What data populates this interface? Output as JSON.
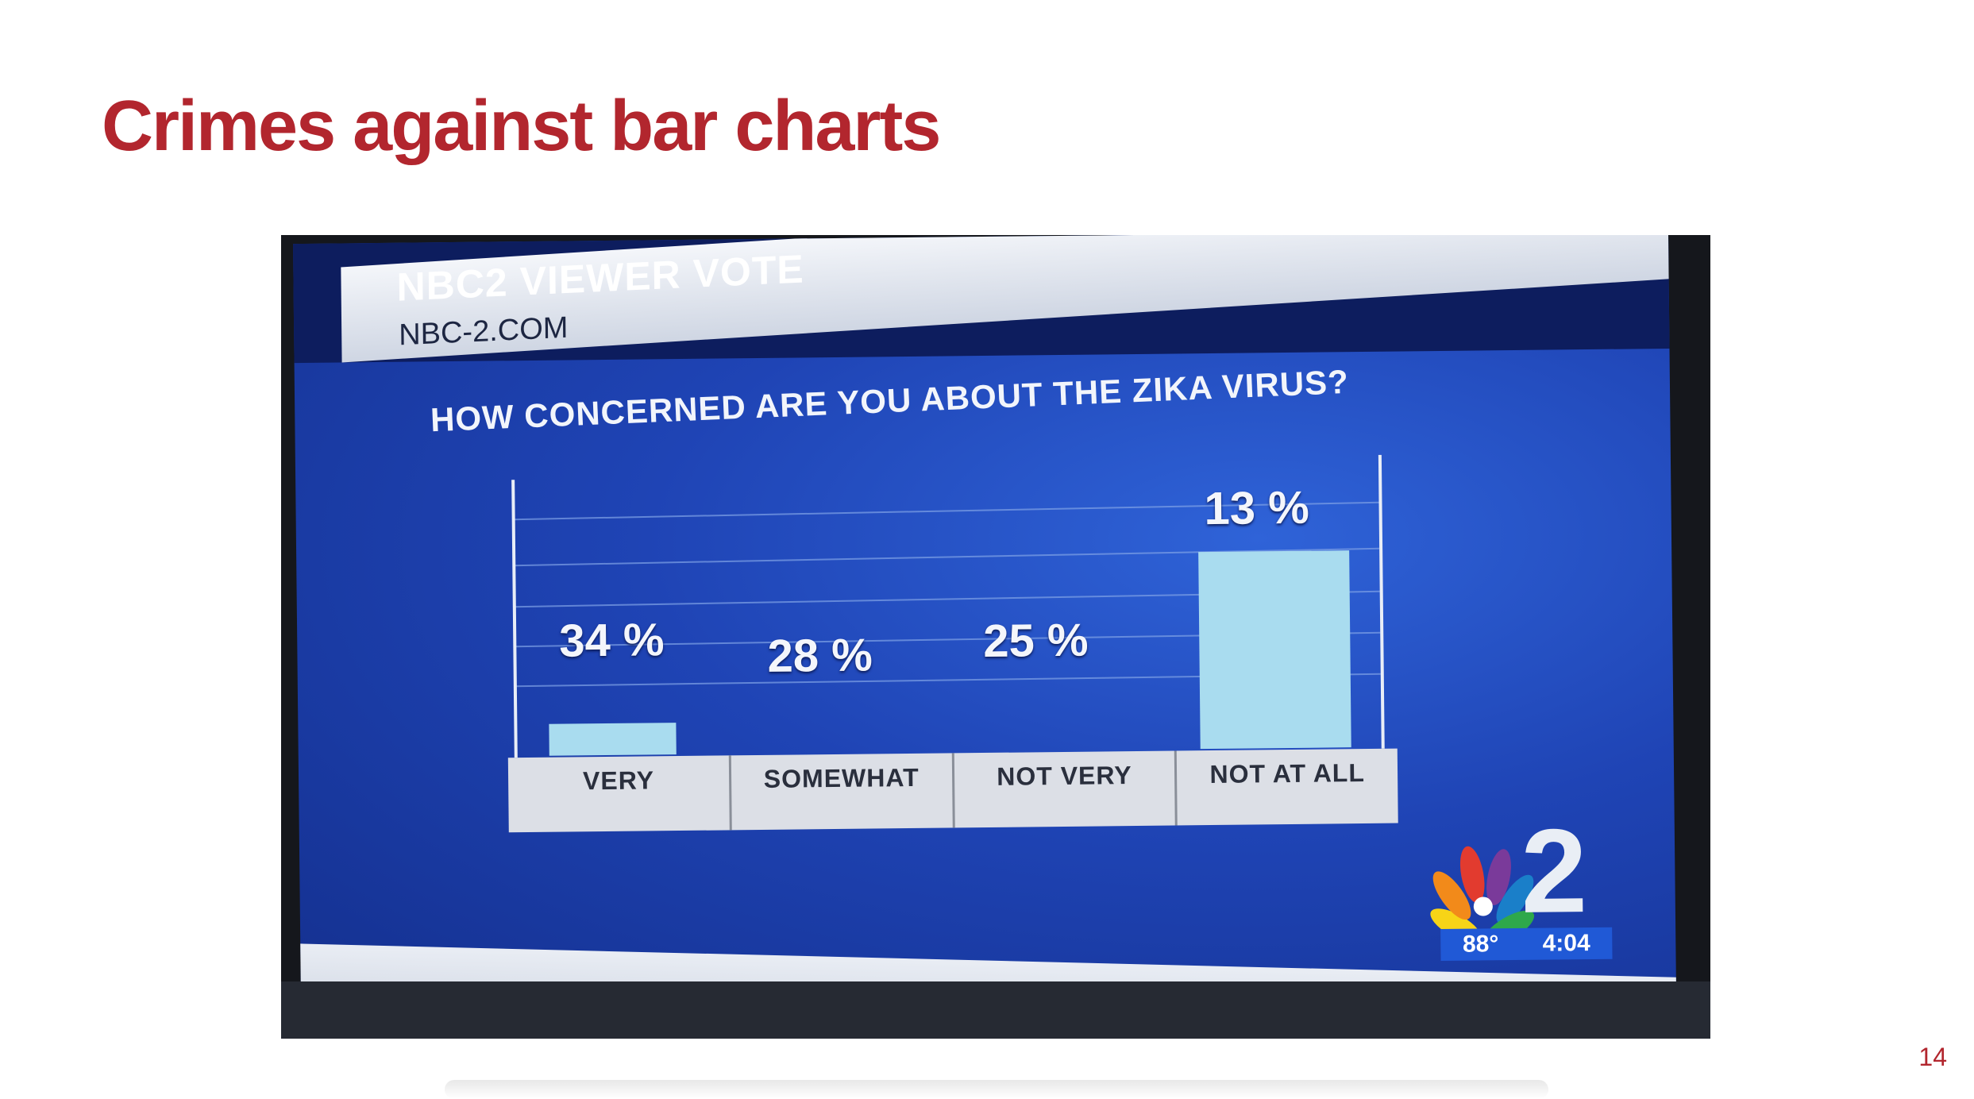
{
  "slide": {
    "title": "Crimes against bar charts",
    "page_number": "14"
  },
  "photo": {
    "header_title": "NBC2 VIEWER VOTE",
    "header_subtitle": "NBC-2.COM",
    "question": "HOW CONCERNED ARE YOU ABOUT THE ZIKA VIRUS?",
    "temperature": "88°",
    "time": "4:04",
    "logo_text": "2"
  },
  "colors": {
    "title_red": "#b2262e",
    "bar_fill": "#a9dcef",
    "screen_blue": "#1f44b5"
  },
  "chart_data": {
    "type": "bar",
    "title": "HOW CONCERNED ARE YOU ABOUT THE ZIKA VIRUS?",
    "categories": [
      "VERY",
      "SOMEWHAT",
      "NOT VERY",
      "NOT AT ALL"
    ],
    "values": [
      34,
      28,
      25,
      13
    ],
    "value_labels": [
      "34 %",
      "28 %",
      "25 %",
      "13 %"
    ],
    "unit": "%",
    "grid": true,
    "legend": "none"
  }
}
